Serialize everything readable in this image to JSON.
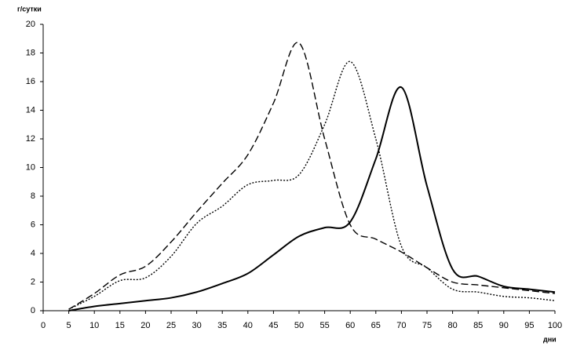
{
  "chart_data": {
    "type": "line",
    "y_label": "г/сутки",
    "x_label": "дни",
    "x": [
      5,
      10,
      15,
      20,
      25,
      30,
      35,
      40,
      45,
      50,
      55,
      60,
      65,
      70,
      75,
      80,
      85,
      90,
      95,
      100
    ],
    "series": [
      {
        "color": "#000000",
        "dash": "9 4",
        "values": [
          0.1,
          1.2,
          2.5,
          3.1,
          4.8,
          6.9,
          8.9,
          10.9,
          14.5,
          18.7,
          12,
          6,
          5,
          4.1,
          3,
          2,
          1.8,
          1.6,
          1.4,
          1.2
        ]
      },
      {
        "color": "#000000",
        "dash": "2 2",
        "values": [
          0.1,
          1,
          2.1,
          2.3,
          3.8,
          6.1,
          7.3,
          8.8,
          9.1,
          9.5,
          13,
          17.4,
          12,
          4.5,
          3,
          1.5,
          1.3,
          1,
          0.9,
          0.7
        ]
      },
      {
        "color": "#000000",
        "dash": "none",
        "values": [
          0,
          0.3,
          0.5,
          0.7,
          0.9,
          1.3,
          1.9,
          2.6,
          3.9,
          5.2,
          5.8,
          6.2,
          10.6,
          15.6,
          8.7,
          2.9,
          2.4,
          1.7,
          1.5,
          1.3
        ]
      }
    ],
    "xlim": [
      0,
      100
    ],
    "xticks": [
      0,
      5,
      10,
      15,
      20,
      25,
      30,
      35,
      40,
      45,
      50,
      55,
      60,
      65,
      70,
      75,
      80,
      85,
      90,
      95,
      100
    ],
    "ylim": [
      0,
      20
    ],
    "yticks": [
      0,
      2,
      4,
      6,
      8,
      10,
      12,
      14,
      16,
      18,
      20
    ],
    "grid": false
  }
}
